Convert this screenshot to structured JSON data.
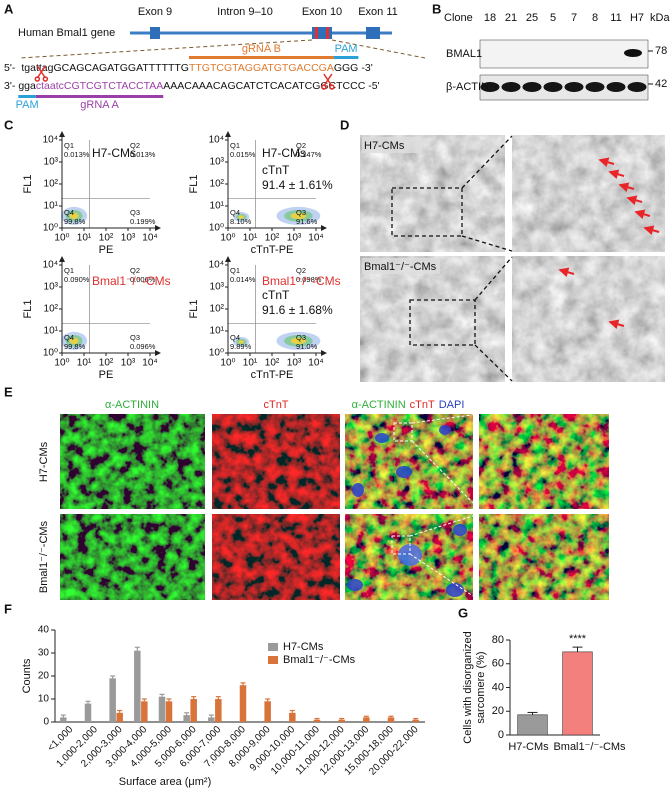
{
  "panels": {
    "A": {
      "letter": "A",
      "gene_label": "Human Bmal1 gene",
      "exon9": "Exon 9",
      "intron": "Intron 9–10",
      "exon10": "Exon 10",
      "exon11": "Exon 11",
      "top_strand": {
        "start": "5'-",
        "segments": [
          "tgattagGCAGCAGATGGATTTTTTG",
          "TTGTCGTAGGATGTGACCGA",
          "GGG"
        ],
        "end": "-3'"
      },
      "bottom_strand": {
        "start": "3'-",
        "segments": [
          "gga",
          "ctaatcCGTCGTCTACCTAA",
          "AAACAAACAGCATCTCACATCGGCTCCC"
        ],
        "end": "-5'"
      },
      "grna_b": "gRNA B",
      "grna_a": "gRNA A",
      "pam_top": "PAM",
      "pam_bottom": "PAM"
    },
    "B": {
      "letter": "B",
      "clone_label": "Clone",
      "lanes": [
        "18",
        "21",
        "25",
        "5",
        "7",
        "8",
        "11",
        "H7"
      ],
      "unit": "kDa",
      "rows": [
        {
          "name": "BMAL1",
          "size": "78"
        },
        {
          "name": "β-ACTIN",
          "size": "42"
        }
      ]
    },
    "C": {
      "letter": "C",
      "log_ticks": [
        "10⁰",
        "10¹",
        "10²",
        "10³",
        "10⁴"
      ],
      "ylabel": "FL1",
      "plots": [
        {
          "title": "H7-CMs",
          "xlabel": "PE",
          "quadrants": [
            {
              "name": "Q1",
              "value": "0.013%"
            },
            {
              "name": "Q2",
              "value": "0.013%"
            },
            {
              "name": "Q3",
              "value": "0.199%"
            },
            {
              "name": "Q4",
              "value": "99.8%"
            }
          ]
        },
        {
          "title": "H7-CMs",
          "marker": "cTnT",
          "stat": "91.4 ± 1.61%",
          "xlabel": "cTnT-PE",
          "quadrants": [
            {
              "name": "Q1",
              "value": "0.015%"
            },
            {
              "name": "Q2",
              "value": "0.247%"
            },
            {
              "name": "Q3",
              "value": "91.6%"
            },
            {
              "name": "Q4",
              "value": "8.10%"
            }
          ]
        },
        {
          "title": "Bmal1⁻/⁻-CMs",
          "xlabel": "PE",
          "quadrants": [
            {
              "name": "Q1",
              "value": "0.090%"
            },
            {
              "name": "Q2",
              "value": "0.006%"
            },
            {
              "name": "Q3",
              "value": "0.096%"
            },
            {
              "name": "Q4",
              "value": "99.8%"
            }
          ]
        },
        {
          "title": "Bmal1⁻/⁻-CMs",
          "marker": "cTnT",
          "stat": "91.6 ± 1.68%",
          "xlabel": "cTnT-PE",
          "quadrants": [
            {
              "name": "Q1",
              "value": "0.014%"
            },
            {
              "name": "Q2",
              "value": "0.098%"
            },
            {
              "name": "Q3",
              "value": "91.0%"
            },
            {
              "name": "Q4",
              "value": "9.89%"
            }
          ]
        }
      ]
    },
    "D": {
      "letter": "D",
      "row1": "H7-CMs",
      "row2": "Bmal1⁻/⁻-CMs"
    },
    "E": {
      "letter": "E",
      "col1": "α-ACTININ",
      "col2": "cTnT",
      "merge": [
        "α-ACTININ",
        "cTnT",
        "DAPI"
      ],
      "row1": "H7-CMs",
      "row2": "Bmal1⁻/⁻-CMs"
    },
    "F": {
      "letter": "F"
    },
    "G": {
      "letter": "G"
    }
  },
  "chart_data": [
    {
      "type": "bar",
      "ylabel": "Counts",
      "xlabel": "Surface area (μm²)",
      "categories": [
        "<1,000",
        "1,000-2,000",
        "2,000-3,000",
        "3,000-4,000",
        "4,000-5,000",
        "5,000-6,000",
        "6,000-7,000",
        "7,000-8,000",
        "8,000-9,000",
        "9,000-10,000",
        "10,000-11,000",
        "11,000-12,000",
        "12,000-13,000",
        "15,000-18,000",
        "20,000-22,000"
      ],
      "series": [
        {
          "name": "H7-CMs",
          "color": "#9a9a9a",
          "values": [
            2,
            8,
            19,
            31,
            11,
            3,
            2,
            0,
            0,
            0,
            0,
            0,
            0,
            0,
            0
          ],
          "errors": [
            1,
            1,
            1,
            1.5,
            1,
            1,
            1,
            0,
            0,
            0,
            0,
            0,
            0,
            0,
            0
          ]
        },
        {
          "name": "Bmal1⁻/⁻-CMs",
          "color": "#d8733a",
          "values": [
            0,
            0,
            4,
            9,
            9,
            10,
            10,
            16,
            9,
            4,
            1,
            1,
            2,
            2,
            1
          ],
          "errors": [
            0,
            0,
            1,
            1,
            1,
            1,
            1,
            1,
            1,
            1,
            0.5,
            0.5,
            0.5,
            0.5,
            0.5
          ]
        }
      ],
      "ylim": [
        0,
        40
      ],
      "yticks": [
        0,
        10,
        20,
        30,
        40
      ],
      "legend": "top-right"
    },
    {
      "type": "bar",
      "ylabel": [
        "Cells with disorganized",
        "sarcomere (%)"
      ],
      "categories": [
        "H7-CMs",
        "Bmal1⁻/⁻-CMs"
      ],
      "values": [
        17,
        70
      ],
      "errors": [
        2,
        4
      ],
      "colors": [
        "#9a9a9a",
        "#f4807e"
      ],
      "annotation": "****",
      "ylim": [
        0,
        80
      ],
      "yticks": [
        0,
        20,
        40,
        60,
        80
      ]
    }
  ]
}
